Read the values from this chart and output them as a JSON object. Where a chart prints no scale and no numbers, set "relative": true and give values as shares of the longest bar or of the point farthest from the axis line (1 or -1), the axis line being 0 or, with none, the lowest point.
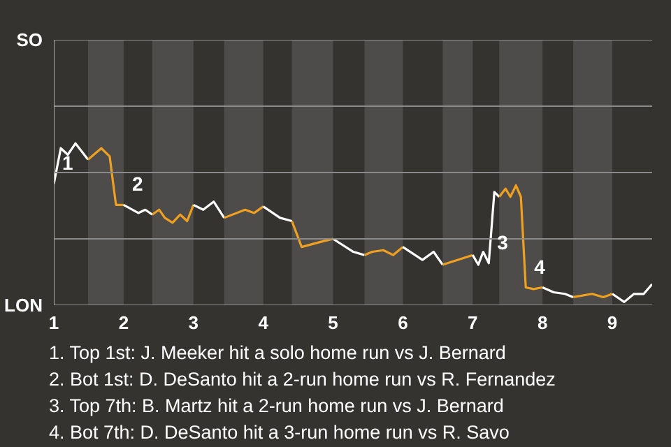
{
  "chart_data": {
    "type": "line",
    "relative": true,
    "marker": "none",
    "line_style": "solid",
    "xlim": [
      1,
      9.57
    ],
    "xticks": [
      {
        "value": 1,
        "label": "1"
      },
      {
        "value": 2,
        "label": "2"
      },
      {
        "value": 3,
        "label": "3"
      },
      {
        "value": 4,
        "label": "4"
      },
      {
        "value": 5,
        "label": "5"
      },
      {
        "value": 6,
        "label": "6"
      },
      {
        "value": 7,
        "label": "7"
      },
      {
        "value": 8,
        "label": "8"
      },
      {
        "value": 9,
        "label": "9"
      }
    ],
    "ref_lines": [
      {
        "axis": "y",
        "value": 0,
        "label": "LON",
        "color": "#8a8a8a"
      },
      {
        "axis": "y",
        "value": 0.41,
        "label": null,
        "color": "#8a8a8a"
      },
      {
        "axis": "y",
        "value": 0.82,
        "label": null,
        "color": "#8a8a8a"
      },
      {
        "axis": "y",
        "value": 1.23,
        "label": null,
        "color": "#8a8a8a"
      },
      {
        "axis": "y",
        "value": 1.64,
        "label": "SO",
        "color": "#8a8a8a"
      }
    ],
    "bands": [
      {
        "axis": "x",
        "from": 1.49,
        "to": 2,
        "color": "#4d4c4a"
      },
      {
        "axis": "x",
        "from": 2.41,
        "to": 3,
        "color": "#4d4c4a"
      },
      {
        "axis": "x",
        "from": 3.44,
        "to": 4,
        "color": "#4d4c4a"
      },
      {
        "axis": "x",
        "from": 4.41,
        "to": 5,
        "color": "#4d4c4a"
      },
      {
        "axis": "x",
        "from": 5.45,
        "to": 6,
        "color": "#4d4c4a"
      },
      {
        "axis": "x",
        "from": 6.57,
        "to": 7,
        "color": "#4d4c4a"
      },
      {
        "axis": "x",
        "from": 7.38,
        "to": 8,
        "color": "#4d4c4a"
      },
      {
        "axis": "x",
        "from": 8.44,
        "to": 9,
        "color": "#4d4c4a"
      }
    ],
    "series": [
      {
        "color": "#ffffff",
        "x": [
          1,
          1.1,
          1.2,
          1.31,
          1.49
        ],
        "values": [
          0.75,
          0.97,
          0.93,
          1,
          0.9
        ]
      },
      {
        "color": "#f0a020",
        "x": [
          1.49,
          1.68,
          1.8,
          1.89,
          2
        ],
        "values": [
          0.9,
          0.97,
          0.92,
          0.62,
          0.62
        ]
      },
      {
        "color": "#ffffff",
        "x": [
          2,
          2.21,
          2.31,
          2.41
        ],
        "values": [
          0.62,
          0.57,
          0.59,
          0.56
        ]
      },
      {
        "color": "#f0a020",
        "x": [
          2.41,
          2.51,
          2.59,
          2.7,
          2.81,
          2.91,
          3
        ],
        "values": [
          0.56,
          0.59,
          0.54,
          0.51,
          0.56,
          0.52,
          0.62
        ]
      },
      {
        "color": "#ffffff",
        "x": [
          3,
          3.14,
          3.29,
          3.44
        ],
        "values": [
          0.62,
          0.59,
          0.64,
          0.54
        ]
      },
      {
        "color": "#f0a020",
        "x": [
          3.44,
          3.74,
          3.87,
          4
        ],
        "values": [
          0.54,
          0.59,
          0.57,
          0.61
        ]
      },
      {
        "color": "#ffffff",
        "x": [
          4,
          4.24,
          4.41
        ],
        "values": [
          0.61,
          0.54,
          0.52
        ]
      },
      {
        "color": "#f0a020",
        "x": [
          4.41,
          4.55,
          4.81,
          5
        ],
        "values": [
          0.52,
          0.36,
          0.39,
          0.41
        ]
      },
      {
        "color": "#ffffff",
        "x": [
          5,
          5.29,
          5.45
        ],
        "values": [
          0.41,
          0.33,
          0.31
        ]
      },
      {
        "color": "#f0a020",
        "x": [
          5.45,
          5.56,
          5.72,
          5.86,
          6
        ],
        "values": [
          0.31,
          0.33,
          0.34,
          0.31,
          0.36
        ]
      },
      {
        "color": "#ffffff",
        "x": [
          6,
          6.28,
          6.44,
          6.57
        ],
        "values": [
          0.36,
          0.28,
          0.33,
          0.25
        ]
      },
      {
        "color": "#f0a020",
        "x": [
          6.57,
          7
        ],
        "values": [
          0.25,
          0.31
        ]
      },
      {
        "color": "#ffffff",
        "x": [
          7,
          7.08,
          7.15,
          7.23,
          7.31,
          7.38
        ],
        "values": [
          0.31,
          0.25,
          0.33,
          0.26,
          0.7,
          0.67
        ]
      },
      {
        "color": "#f0a020",
        "x": [
          7.38,
          7.47,
          7.54,
          7.62,
          7.69,
          7.76,
          7.87,
          8
        ],
        "values": [
          0.67,
          0.72,
          0.67,
          0.74,
          0.67,
          0.11,
          0.1,
          0.11
        ]
      },
      {
        "color": "#ffffff",
        "x": [
          8,
          8.16,
          8.32,
          8.44
        ],
        "values": [
          0.11,
          0.08,
          0.07,
          0.05
        ]
      },
      {
        "color": "#f0a020",
        "x": [
          8.44,
          8.71,
          8.87,
          9
        ],
        "values": [
          0.05,
          0.07,
          0.05,
          0.07
        ]
      },
      {
        "color": "#ffffff",
        "x": [
          9,
          9.17,
          9.31,
          9.45,
          9.57
        ],
        "values": [
          0.07,
          0.02,
          0.07,
          0.07,
          0.13
        ]
      }
    ],
    "annotations": [
      {
        "text": "1",
        "x": 1,
        "y": 0.75
      },
      {
        "text": "2",
        "x": 2,
        "y": 0.62
      },
      {
        "text": "3",
        "x": 7.23,
        "y": 0.26
      },
      {
        "text": "4",
        "x": 7.76,
        "y": 0.11
      },
      "1. Top 1st: J. Meeker hit a solo home run vs J. Bernard",
      "2. Bot 1st: D. DeSanto hit a 2-run home run vs R. Fernandez",
      "3. Top 7th: B. Martz hit a 2-run home run vs J. Bernard",
      "4. Bot 7th: D. DeSanto hit a 3-run home run vs R. Savo"
    ]
  }
}
